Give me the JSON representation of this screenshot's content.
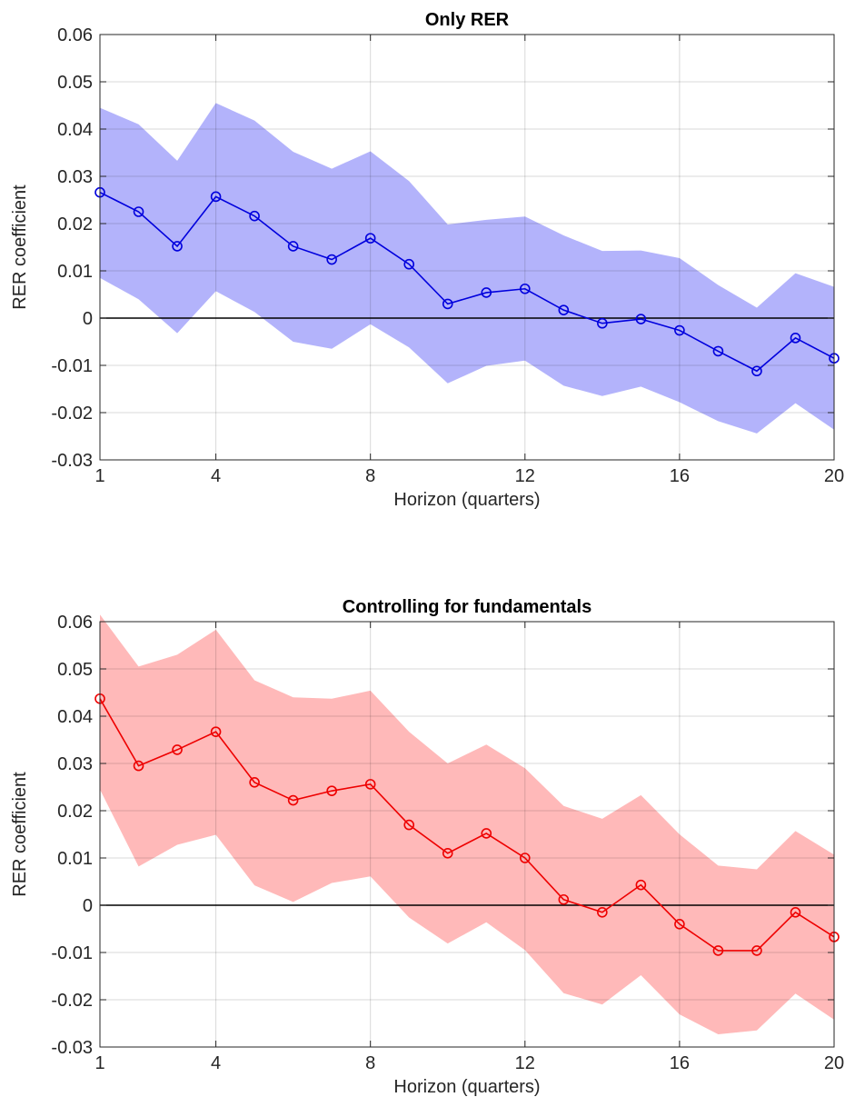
{
  "chart_data": [
    {
      "type": "line",
      "title": "Only RER",
      "xlabel": "Horizon (quarters)",
      "ylabel": "RER coefficient",
      "xlim": [
        1,
        20
      ],
      "ylim": [
        -0.03,
        0.06
      ],
      "xticks": [
        1,
        4,
        8,
        12,
        16,
        20
      ],
      "xtick_labels": [
        "1",
        "4",
        "8",
        "12",
        "16",
        "20"
      ],
      "yticks": [
        -0.03,
        -0.02,
        -0.01,
        0,
        0.01,
        0.02,
        0.03,
        0.04,
        0.05,
        0.06
      ],
      "ytick_labels": [
        "-0.03",
        "-0.02",
        "-0.01",
        "0",
        "0.01",
        "0.02",
        "0.03",
        "0.04",
        "0.05",
        "0.06"
      ],
      "grid": true,
      "zero_line": true,
      "line_color": "#0000dd",
      "band_color": "#b3b3fb",
      "x": [
        1,
        2,
        3,
        4,
        5,
        6,
        7,
        8,
        9,
        10,
        11,
        12,
        13,
        14,
        15,
        16,
        17,
        18,
        19,
        20
      ],
      "series": [
        {
          "values": [
            0.0266,
            0.0225,
            0.0152,
            0.0257,
            0.0216,
            0.0152,
            0.0124,
            0.0169,
            0.0114,
            0.003,
            0.0054,
            0.0062,
            0.0017,
            -0.0011,
            -0.0002,
            -0.0026,
            -0.007,
            -0.0112,
            -0.0042,
            -0.0085
          ],
          "upper": [
            0.0445,
            0.041,
            0.0333,
            0.0455,
            0.0418,
            0.0352,
            0.0316,
            0.0353,
            0.029,
            0.0198,
            0.0208,
            0.0215,
            0.0175,
            0.0142,
            0.0143,
            0.0127,
            0.007,
            0.0022,
            0.0095,
            0.0066
          ],
          "lower": [
            0.0085,
            0.004,
            -0.0032,
            0.0057,
            0.0013,
            -0.005,
            -0.0065,
            -0.0013,
            -0.0062,
            -0.0138,
            -0.0101,
            -0.009,
            -0.0143,
            -0.0165,
            -0.0145,
            -0.0178,
            -0.0218,
            -0.0244,
            -0.018,
            -0.0236
          ]
        }
      ]
    },
    {
      "type": "line",
      "title": "Controlling for fundamentals",
      "xlabel": "Horizon (quarters)",
      "ylabel": "RER coefficient",
      "xlim": [
        1,
        20
      ],
      "ylim": [
        -0.03,
        0.06
      ],
      "xticks": [
        1,
        4,
        8,
        12,
        16,
        20
      ],
      "xtick_labels": [
        "1",
        "4",
        "8",
        "12",
        "16",
        "20"
      ],
      "yticks": [
        -0.03,
        -0.02,
        -0.01,
        0,
        0.01,
        0.02,
        0.03,
        0.04,
        0.05,
        0.06
      ],
      "ytick_labels": [
        "-0.03",
        "-0.02",
        "-0.01",
        "0",
        "0.01",
        "0.02",
        "0.03",
        "0.04",
        "0.05",
        "0.06"
      ],
      "grid": true,
      "zero_line": true,
      "line_color": "#ee0000",
      "band_color": "#ffb9b9",
      "x": [
        1,
        2,
        3,
        4,
        5,
        6,
        7,
        8,
        9,
        10,
        11,
        12,
        13,
        14,
        15,
        16,
        17,
        18,
        19,
        20
      ],
      "series": [
        {
          "values": [
            0.0437,
            0.0295,
            0.0329,
            0.0367,
            0.026,
            0.0222,
            0.0242,
            0.0256,
            0.017,
            0.011,
            0.0152,
            0.01,
            0.0012,
            -0.0015,
            0.0043,
            -0.004,
            -0.0096,
            -0.0096,
            -0.0015,
            -0.0067
          ],
          "upper": [
            0.0615,
            0.0505,
            0.053,
            0.0583,
            0.0476,
            0.044,
            0.0437,
            0.0454,
            0.0367,
            0.03,
            0.034,
            0.029,
            0.021,
            0.0183,
            0.0233,
            0.015,
            0.0084,
            0.0076,
            0.0157,
            0.0107
          ],
          "lower": [
            0.0245,
            0.0082,
            0.0128,
            0.0149,
            0.0042,
            0.0007,
            0.0047,
            0.0061,
            -0.0026,
            -0.0081,
            -0.0036,
            -0.0095,
            -0.0186,
            -0.021,
            -0.0148,
            -0.0231,
            -0.0273,
            -0.0265,
            -0.0187,
            -0.0242
          ]
        }
      ]
    }
  ]
}
